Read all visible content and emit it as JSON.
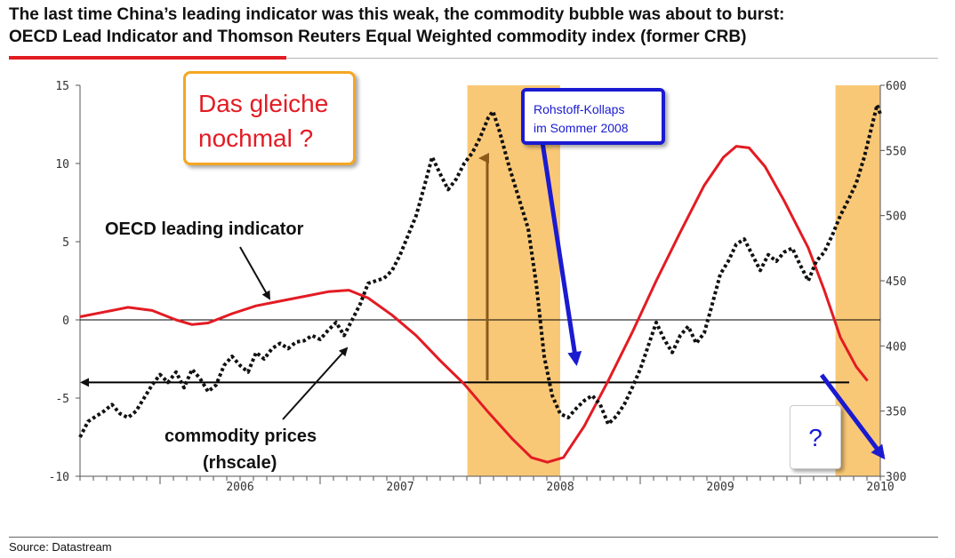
{
  "header": {
    "title_line1": "The last time China’s leading indicator was this weak, the commodity bubble was about to burst:",
    "title_line2": "OECD Lead Indicator and Thomson Reuters Equal Weighted commodity index (former CRB)"
  },
  "footer": {
    "source": "Source: Datastream"
  },
  "colors": {
    "accent_red": "#e31b23",
    "highlight": "#f9c877",
    "annotation_blue": "#1a1ad1",
    "orange_frame": "#f5a623"
  },
  "annotations": {
    "oecd_label": "OECD leading indicator",
    "commodity_label_line1": "commodity prices",
    "commodity_label_line2": "(rhscale)",
    "box_same_line1": "Das gleiche",
    "box_same_line2": "nochmal ?",
    "box_collapse_line1": "Rohstoff-Kollaps",
    "box_collapse_line2": "im Sommer 2008",
    "box_question": "?"
  },
  "chart_data": {
    "type": "line",
    "x_tick_labels": [
      "2006",
      "2007",
      "2008",
      "2009",
      "2010"
    ],
    "xlim": [
      2005.5,
      2010.5
    ],
    "y_left": {
      "ticks": [
        "15",
        "10",
        "5",
        "0",
        "-5",
        "-10"
      ],
      "ylim": [
        -10,
        15
      ]
    },
    "y_right": {
      "ticks": [
        "600",
        "550",
        "500",
        "450",
        "400",
        "350",
        "300"
      ],
      "ylim": [
        300,
        600
      ]
    },
    "reference_lines": [
      {
        "axis": "left",
        "value": 0,
        "color": "#000000"
      },
      {
        "axis": "left",
        "value": -4,
        "color": "#000000",
        "arrow": "left"
      }
    ],
    "highlight_periods": [
      [
        2007.92,
        2008.5
      ],
      [
        2010.22,
        2010.5
      ]
    ],
    "series": [
      {
        "name": "OECD leading indicator",
        "axis": "left",
        "style": "solid",
        "color": "#e31b23",
        "points": [
          [
            2005.5,
            0.2
          ],
          [
            2005.65,
            0.5
          ],
          [
            2005.8,
            0.8
          ],
          [
            2005.95,
            0.6
          ],
          [
            2006.1,
            0.0
          ],
          [
            2006.2,
            -0.3
          ],
          [
            2006.3,
            -0.2
          ],
          [
            2006.45,
            0.4
          ],
          [
            2006.6,
            0.9
          ],
          [
            2006.75,
            1.2
          ],
          [
            2006.9,
            1.5
          ],
          [
            2007.05,
            1.8
          ],
          [
            2007.18,
            1.9
          ],
          [
            2007.3,
            1.4
          ],
          [
            2007.45,
            0.3
          ],
          [
            2007.6,
            -1.0
          ],
          [
            2007.75,
            -2.6
          ],
          [
            2007.9,
            -4.1
          ],
          [
            2008.05,
            -5.9
          ],
          [
            2008.2,
            -7.6
          ],
          [
            2008.32,
            -8.8
          ],
          [
            2008.42,
            -9.1
          ],
          [
            2008.52,
            -8.8
          ],
          [
            2008.65,
            -6.8
          ],
          [
            2008.8,
            -3.9
          ],
          [
            2008.95,
            -0.8
          ],
          [
            2009.1,
            2.5
          ],
          [
            2009.25,
            5.6
          ],
          [
            2009.4,
            8.6
          ],
          [
            2009.52,
            10.4
          ],
          [
            2009.6,
            11.1
          ],
          [
            2009.68,
            11.0
          ],
          [
            2009.78,
            9.8
          ],
          [
            2009.9,
            7.6
          ],
          [
            2010.05,
            4.6
          ],
          [
            2010.15,
            1.9
          ],
          [
            2010.25,
            -1.1
          ],
          [
            2010.35,
            -3.0
          ],
          [
            2010.42,
            -3.9
          ]
        ]
      },
      {
        "name": "commodity prices",
        "axis": "right",
        "style": "dotted",
        "color": "#111111",
        "points": [
          [
            2005.5,
            330
          ],
          [
            2005.55,
            342
          ],
          [
            2005.6,
            346
          ],
          [
            2005.65,
            350
          ],
          [
            2005.7,
            355
          ],
          [
            2005.75,
            348
          ],
          [
            2005.8,
            345
          ],
          [
            2005.85,
            350
          ],
          [
            2005.9,
            360
          ],
          [
            2005.95,
            370
          ],
          [
            2006.0,
            378
          ],
          [
            2006.05,
            372
          ],
          [
            2006.1,
            380
          ],
          [
            2006.15,
            368
          ],
          [
            2006.2,
            382
          ],
          [
            2006.25,
            375
          ],
          [
            2006.3,
            365
          ],
          [
            2006.35,
            370
          ],
          [
            2006.4,
            385
          ],
          [
            2006.45,
            392
          ],
          [
            2006.5,
            385
          ],
          [
            2006.55,
            380
          ],
          [
            2006.6,
            395
          ],
          [
            2006.65,
            390
          ],
          [
            2006.7,
            398
          ],
          [
            2006.75,
            402
          ],
          [
            2006.8,
            398
          ],
          [
            2006.85,
            403
          ],
          [
            2006.9,
            404
          ],
          [
            2006.95,
            408
          ],
          [
            2007.0,
            405
          ],
          [
            2007.05,
            412
          ],
          [
            2007.1,
            418
          ],
          [
            2007.15,
            408
          ],
          [
            2007.2,
            420
          ],
          [
            2007.25,
            432
          ],
          [
            2007.3,
            448
          ],
          [
            2007.35,
            450
          ],
          [
            2007.4,
            452
          ],
          [
            2007.45,
            458
          ],
          [
            2007.5,
            470
          ],
          [
            2007.55,
            485
          ],
          [
            2007.6,
            500
          ],
          [
            2007.65,
            522
          ],
          [
            2007.7,
            545
          ],
          [
            2007.75,
            532
          ],
          [
            2007.8,
            520
          ],
          [
            2007.85,
            528
          ],
          [
            2007.9,
            540
          ],
          [
            2007.95,
            548
          ],
          [
            2008.0,
            560
          ],
          [
            2008.05,
            575
          ],
          [
            2008.08,
            580
          ],
          [
            2008.12,
            565
          ],
          [
            2008.18,
            538
          ],
          [
            2008.25,
            510
          ],
          [
            2008.3,
            490
          ],
          [
            2008.35,
            448
          ],
          [
            2008.4,
            392
          ],
          [
            2008.45,
            362
          ],
          [
            2008.5,
            348
          ],
          [
            2008.55,
            345
          ],
          [
            2008.6,
            352
          ],
          [
            2008.65,
            358
          ],
          [
            2008.7,
            362
          ],
          [
            2008.75,
            355
          ],
          [
            2008.8,
            340
          ],
          [
            2008.85,
            346
          ],
          [
            2008.9,
            355
          ],
          [
            2008.95,
            368
          ],
          [
            2009.0,
            382
          ],
          [
            2009.05,
            400
          ],
          [
            2009.1,
            418
          ],
          [
            2009.15,
            405
          ],
          [
            2009.2,
            395
          ],
          [
            2009.25,
            408
          ],
          [
            2009.3,
            415
          ],
          [
            2009.35,
            402
          ],
          [
            2009.4,
            410
          ],
          [
            2009.45,
            432
          ],
          [
            2009.5,
            455
          ],
          [
            2009.55,
            465
          ],
          [
            2009.6,
            478
          ],
          [
            2009.65,
            482
          ],
          [
            2009.7,
            470
          ],
          [
            2009.75,
            458
          ],
          [
            2009.8,
            470
          ],
          [
            2009.85,
            465
          ],
          [
            2009.9,
            472
          ],
          [
            2009.95,
            475
          ],
          [
            2010.0,
            462
          ],
          [
            2010.05,
            450
          ],
          [
            2010.1,
            465
          ],
          [
            2010.15,
            472
          ],
          [
            2010.2,
            485
          ],
          [
            2010.25,
            500
          ],
          [
            2010.3,
            512
          ],
          [
            2010.35,
            525
          ],
          [
            2010.4,
            545
          ],
          [
            2010.45,
            570
          ],
          [
            2010.48,
            585
          ],
          [
            2010.5,
            578
          ]
        ]
      }
    ]
  }
}
